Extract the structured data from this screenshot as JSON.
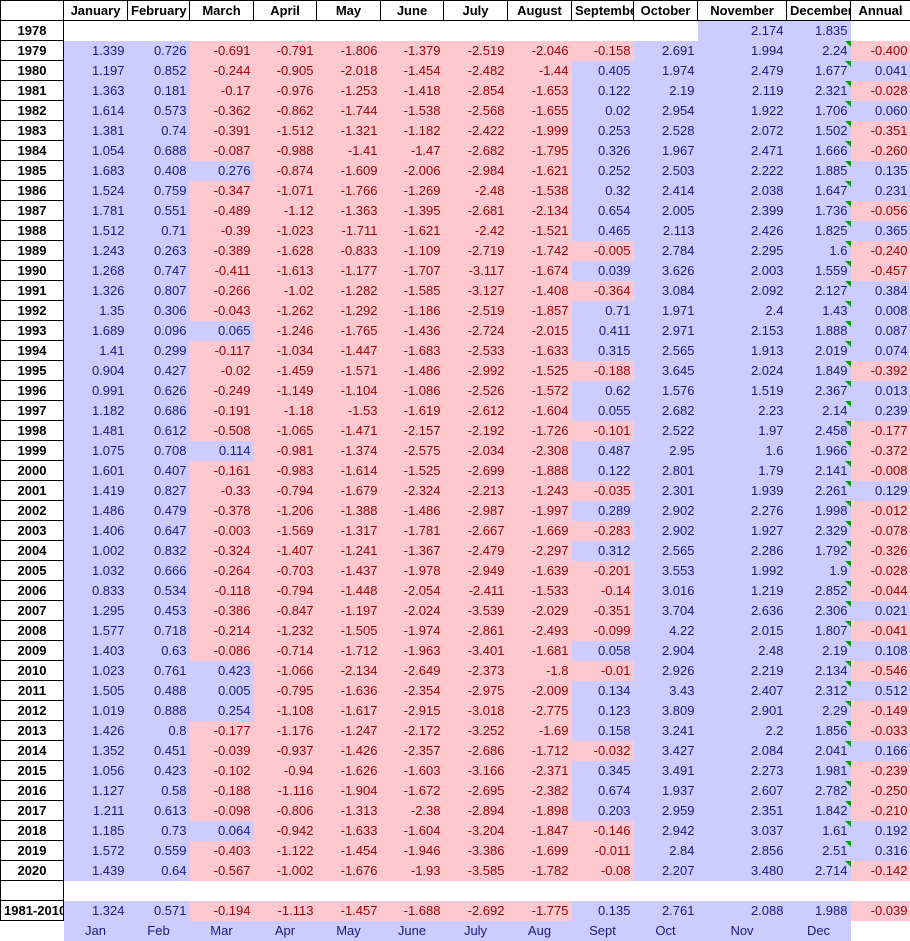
{
  "columns": [
    "January",
    "February",
    "March",
    "April",
    "May",
    "June",
    "July",
    "August",
    "September",
    "October",
    "November",
    "December",
    "Annual"
  ],
  "rows": [
    {
      "year": "1978",
      "values": [
        "",
        "",
        "",
        "",
        "",
        "",
        "",
        "",
        "",
        "",
        "2.174",
        "1.835",
        ""
      ]
    },
    {
      "year": "1979",
      "values": [
        "1.339",
        "0.726",
        "-0.691",
        "-0.791",
        "-1.806",
        "-1.379",
        "-2.519",
        "-2.046",
        "-0.158",
        "2.691",
        "1.994",
        "2.24",
        "-0.400"
      ]
    },
    {
      "year": "1980",
      "values": [
        "1.197",
        "0.852",
        "-0.244",
        "-0.905",
        "-2.018",
        "-1.454",
        "-2.482",
        "-1.44",
        "0.405",
        "1.974",
        "2.479",
        "1.677",
        "0.041"
      ]
    },
    {
      "year": "1981",
      "values": [
        "1.363",
        "0.181",
        "-0.17",
        "-0.976",
        "-1.253",
        "-1.418",
        "-2.854",
        "-1.653",
        "0.122",
        "2.19",
        "2.119",
        "2.321",
        "-0.028"
      ]
    },
    {
      "year": "1982",
      "values": [
        "1.614",
        "0.573",
        "-0.362",
        "-0.862",
        "-1.744",
        "-1.538",
        "-2.568",
        "-1.655",
        "0.02",
        "2.954",
        "1.922",
        "1.706",
        "0.060"
      ]
    },
    {
      "year": "1983",
      "values": [
        "1.381",
        "0.74",
        "-0.391",
        "-1.512",
        "-1.321",
        "-1.182",
        "-2.422",
        "-1.999",
        "0.253",
        "2.528",
        "2.072",
        "1.502",
        "-0.351"
      ]
    },
    {
      "year": "1984",
      "values": [
        "1.054",
        "0.688",
        "-0.087",
        "-0.988",
        "-1.41",
        "-1.47",
        "-2.682",
        "-1.795",
        "0.326",
        "1.967",
        "2.471",
        "1.666",
        "-0.260"
      ]
    },
    {
      "year": "1985",
      "values": [
        "1.683",
        "0.408",
        "0.276",
        "-0.874",
        "-1.609",
        "-2.006",
        "-2.984",
        "-1.621",
        "0.252",
        "2.503",
        "2.222",
        "1.885",
        "0.135"
      ]
    },
    {
      "year": "1986",
      "values": [
        "1.524",
        "0.759",
        "-0.347",
        "-1.071",
        "-1.766",
        "-1.269",
        "-2.48",
        "-1.538",
        "0.32",
        "2.414",
        "2.038",
        "1.647",
        "0.231"
      ]
    },
    {
      "year": "1987",
      "values": [
        "1.781",
        "0.551",
        "-0.489",
        "-1.12",
        "-1.363",
        "-1.395",
        "-2.681",
        "-2.134",
        "0.654",
        "2.005",
        "2.399",
        "1.736",
        "-0.056"
      ]
    },
    {
      "year": "1988",
      "values": [
        "1.512",
        "0.71",
        "-0.39",
        "-1.023",
        "-1.711",
        "-1.621",
        "-2.42",
        "-1.521",
        "0.465",
        "2.113",
        "2.426",
        "1.825",
        "0.365"
      ]
    },
    {
      "year": "1989",
      "values": [
        "1.243",
        "0.263",
        "-0.389",
        "-1.628",
        "-0.833",
        "-1.109",
        "-2.719",
        "-1.742",
        "-0.005",
        "2.784",
        "2.295",
        "1.6",
        "-0.240"
      ]
    },
    {
      "year": "1990",
      "values": [
        "1.268",
        "0.747",
        "-0.411",
        "-1.613",
        "-1.177",
        "-1.707",
        "-3.117",
        "-1.674",
        "0.039",
        "3.626",
        "2.003",
        "1.559",
        "-0.457"
      ]
    },
    {
      "year": "1991",
      "values": [
        "1.326",
        "0.807",
        "-0.266",
        "-1.02",
        "-1.282",
        "-1.585",
        "-3.127",
        "-1.408",
        "-0.364",
        "3.084",
        "2.092",
        "2.127",
        "0.384"
      ]
    },
    {
      "year": "1992",
      "values": [
        "1.35",
        "0.306",
        "-0.043",
        "-1.262",
        "-1.292",
        "-1.186",
        "-2.519",
        "-1.857",
        "0.71",
        "1.971",
        "2.4",
        "1.43",
        "0.008"
      ]
    },
    {
      "year": "1993",
      "values": [
        "1.689",
        "0.096",
        "0.065",
        "-1.246",
        "-1.765",
        "-1.436",
        "-2.724",
        "-2.015",
        "0.411",
        "2.971",
        "2.153",
        "1.888",
        "0.087"
      ]
    },
    {
      "year": "1994",
      "values": [
        "1.41",
        "0.299",
        "-0.117",
        "-1.034",
        "-1.447",
        "-1.683",
        "-2.533",
        "-1.633",
        "0.315",
        "2.565",
        "1.913",
        "2.019",
        "0.074"
      ]
    },
    {
      "year": "1995",
      "values": [
        "0.904",
        "0.427",
        "-0.02",
        "-1.459",
        "-1.571",
        "-1.486",
        "-2.992",
        "-1.525",
        "-0.188",
        "3.645",
        "2.024",
        "1.849",
        "-0.392"
      ]
    },
    {
      "year": "1996",
      "values": [
        "0.991",
        "0.626",
        "-0.249",
        "-1.149",
        "-1.104",
        "-1.086",
        "-2.526",
        "-1.572",
        "0.62",
        "1.576",
        "1.519",
        "2.367",
        "0.013"
      ]
    },
    {
      "year": "1997",
      "values": [
        "1.182",
        "0.686",
        "-0.191",
        "-1.18",
        "-1.53",
        "-1.619",
        "-2.612",
        "-1.604",
        "0.055",
        "2.682",
        "2.23",
        "2.14",
        "0.239"
      ]
    },
    {
      "year": "1998",
      "values": [
        "1.481",
        "0.612",
        "-0.508",
        "-1.065",
        "-1.471",
        "-2.157",
        "-2.192",
        "-1.726",
        "-0.101",
        "2.522",
        "1.97",
        "2.458",
        "-0.177"
      ]
    },
    {
      "year": "1999",
      "values": [
        "1.075",
        "0.708",
        "0.114",
        "-0.981",
        "-1.374",
        "-2.575",
        "-2.034",
        "-2.308",
        "0.487",
        "2.95",
        "1.6",
        "1.966",
        "-0.372"
      ]
    },
    {
      "year": "2000",
      "values": [
        "1.601",
        "0.407",
        "-0.161",
        "-0.983",
        "-1.614",
        "-1.525",
        "-2.699",
        "-1.888",
        "0.122",
        "2.801",
        "1.79",
        "2.141",
        "-0.008"
      ]
    },
    {
      "year": "2001",
      "values": [
        "1.419",
        "0.827",
        "-0.33",
        "-0.794",
        "-1.679",
        "-2.324",
        "-2.213",
        "-1.243",
        "-0.035",
        "2.301",
        "1.939",
        "2.261",
        "0.129"
      ]
    },
    {
      "year": "2002",
      "values": [
        "1.486",
        "0.479",
        "-0.378",
        "-1.206",
        "-1.388",
        "-1.486",
        "-2.987",
        "-1.997",
        "0.289",
        "2.902",
        "2.276",
        "1.998",
        "-0.012"
      ]
    },
    {
      "year": "2003",
      "values": [
        "1.406",
        "0.647",
        "-0.003",
        "-1.569",
        "-1.317",
        "-1.781",
        "-2.667",
        "-1.669",
        "-0.283",
        "2.902",
        "1.927",
        "2.329",
        "-0.078"
      ]
    },
    {
      "year": "2004",
      "values": [
        "1.002",
        "0.832",
        "-0.324",
        "-1.407",
        "-1.241",
        "-1.367",
        "-2.479",
        "-2.297",
        "0.312",
        "2.565",
        "2.286",
        "1.792",
        "-0.326"
      ]
    },
    {
      "year": "2005",
      "values": [
        "1.032",
        "0.666",
        "-0.264",
        "-0.703",
        "-1.437",
        "-1.978",
        "-2.949",
        "-1.639",
        "-0.201",
        "3.553",
        "1.992",
        "1.9",
        "-0.028"
      ]
    },
    {
      "year": "2006",
      "values": [
        "0.833",
        "0.534",
        "-0.118",
        "-0.794",
        "-1.448",
        "-2.054",
        "-2.411",
        "-1.533",
        "-0.14",
        "3.016",
        "1.219",
        "2.852",
        "-0.044"
      ]
    },
    {
      "year": "2007",
      "values": [
        "1.295",
        "0.453",
        "-0.386",
        "-0.847",
        "-1.197",
        "-2.024",
        "-3.539",
        "-2.029",
        "-0.351",
        "3.704",
        "2.636",
        "2.306",
        "0.021"
      ]
    },
    {
      "year": "2008",
      "values": [
        "1.577",
        "0.718",
        "-0.214",
        "-1.232",
        "-1.505",
        "-1.974",
        "-2.861",
        "-2.493",
        "-0.099",
        "4.22",
        "2.015",
        "1.807",
        "-0.041"
      ]
    },
    {
      "year": "2009",
      "values": [
        "1.403",
        "0.63",
        "-0.086",
        "-0.714",
        "-1.712",
        "-1.963",
        "-3.401",
        "-1.681",
        "0.058",
        "2.904",
        "2.48",
        "2.19",
        "0.108"
      ]
    },
    {
      "year": "2010",
      "values": [
        "1.023",
        "0.761",
        "0.423",
        "-1.066",
        "-2.134",
        "-2.649",
        "-2.373",
        "-1.8",
        "-0.01",
        "2.926",
        "2.219",
        "2.134",
        "-0.546"
      ]
    },
    {
      "year": "2011",
      "values": [
        "1.505",
        "0.488",
        "0.005",
        "-0.795",
        "-1.636",
        "-2.354",
        "-2.975",
        "-2.009",
        "0.134",
        "3.43",
        "2.407",
        "2.312",
        "0.512"
      ]
    },
    {
      "year": "2012",
      "values": [
        "1.019",
        "0.888",
        "0.254",
        "-1.108",
        "-1.617",
        "-2.915",
        "-3.018",
        "-2.775",
        "0.123",
        "3.809",
        "2.901",
        "2.29",
        "-0.149"
      ]
    },
    {
      "year": "2013",
      "values": [
        "1.426",
        "0.8",
        "-0.177",
        "-1.176",
        "-1.247",
        "-2.172",
        "-3.252",
        "-1.69",
        "0.158",
        "3.241",
        "2.2",
        "1.856",
        "-0.033"
      ]
    },
    {
      "year": "2014",
      "values": [
        "1.352",
        "0.451",
        "-0.039",
        "-0.937",
        "-1.426",
        "-2.357",
        "-2.686",
        "-1.712",
        "-0.032",
        "3.427",
        "2.084",
        "2.041",
        "0.166"
      ]
    },
    {
      "year": "2015",
      "values": [
        "1.056",
        "0.423",
        "-0.102",
        "-0.94",
        "-1.626",
        "-1.603",
        "-3.166",
        "-2.371",
        "0.345",
        "3.491",
        "2.273",
        "1.981",
        "-0.239"
      ]
    },
    {
      "year": "2016",
      "values": [
        "1.127",
        "0.58",
        "-0.188",
        "-1.116",
        "-1.904",
        "-1.672",
        "-2.695",
        "-2.382",
        "0.674",
        "1.937",
        "2.607",
        "2.782",
        "-0.250"
      ]
    },
    {
      "year": "2017",
      "values": [
        "1.211",
        "0.613",
        "-0.098",
        "-0.806",
        "-1.313",
        "-2.38",
        "-2.894",
        "-1.898",
        "0.203",
        "2.959",
        "2.351",
        "1.842",
        "-0.210"
      ]
    },
    {
      "year": "2018",
      "values": [
        "1.185",
        "0.73",
        "0.064",
        "-0.942",
        "-1.633",
        "-1.604",
        "-3.204",
        "-1.847",
        "-0.146",
        "2.942",
        "3.037",
        "1.61",
        "0.192"
      ]
    },
    {
      "year": "2019",
      "values": [
        "1.572",
        "0.559",
        "-0.403",
        "-1.122",
        "-1.454",
        "-1.946",
        "-3.386",
        "-1.699",
        "-0.011",
        "2.84",
        "2.856",
        "2.51",
        "0.316"
      ]
    },
    {
      "year": "2020",
      "values": [
        "1.439",
        "0.64",
        "-0.567",
        "-1.002",
        "-1.676",
        "-1.93",
        "-3.585",
        "-1.782",
        "-0.08",
        "2.207",
        "3.480",
        "2.714",
        "-0.142"
      ]
    }
  ],
  "baseline": {
    "label": "1981-2010",
    "values": [
      "1.324",
      "0.571",
      "-0.194",
      "-1.113",
      "-1.457",
      "-1.688",
      "-2.692",
      "-1.775",
      "0.135",
      "2.761",
      "2.088",
      "1.988",
      "-0.039"
    ]
  },
  "abbreviations": [
    "Jan",
    "Feb",
    "Mar",
    "Apr",
    "May",
    "June",
    "July",
    "Aug",
    "Sept",
    "Oct",
    "Nov",
    "Dec"
  ],
  "colors": {
    "positive_fill": "#ccccff",
    "negative_fill": "#ffc7ce",
    "negative_text": "#9c0006",
    "positive_text": "#1a1a80",
    "flag": "#00a000"
  }
}
